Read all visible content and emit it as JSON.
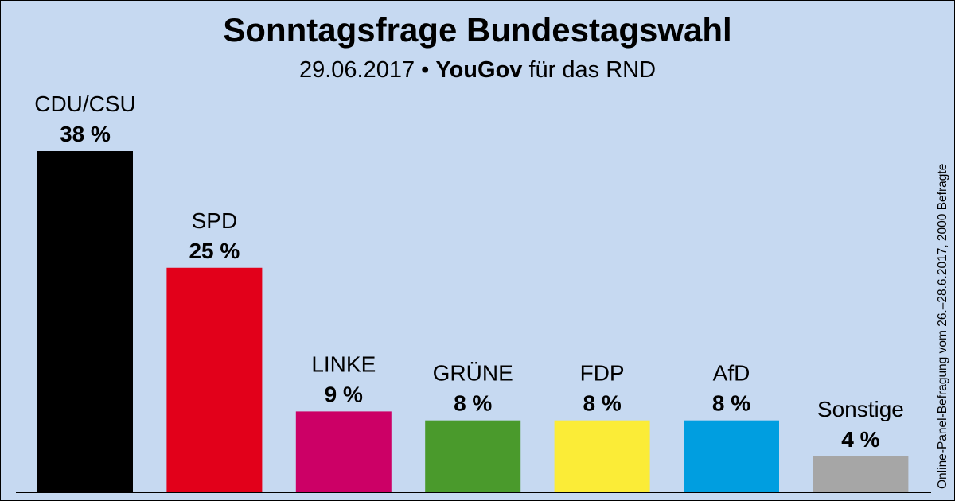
{
  "header": {
    "title": "Sonntagsfrage Bundestagswahl",
    "date": "29.06.2017",
    "bullet": "•",
    "pollster": "YouGov",
    "client": "für das RND"
  },
  "source_note": "Online-Panel-Befragung vom 26.–28.6.2017, 2000 Befragte",
  "chart_data": {
    "type": "bar",
    "title": "Sonntagsfrage Bundestagswahl",
    "subtitle": "29.06.2017 • YouGov für das RND",
    "categories": [
      "CDU/CSU",
      "SPD",
      "LINKE",
      "GRÜNE",
      "FDP",
      "AfD",
      "Sonstige"
    ],
    "values": [
      38,
      25,
      9,
      8,
      8,
      8,
      4
    ],
    "value_labels": [
      "38 %",
      "25 %",
      "9 %",
      "8 %",
      "8 %",
      "8 %",
      "4 %"
    ],
    "colors": [
      "#000000",
      "#e2001a",
      "#cc0066",
      "#4a9a2c",
      "#fbec37",
      "#009ee0",
      "#a6a6a6"
    ],
    "ylim": [
      0,
      38
    ],
    "grid": false,
    "xlabel": "",
    "ylabel": ""
  }
}
